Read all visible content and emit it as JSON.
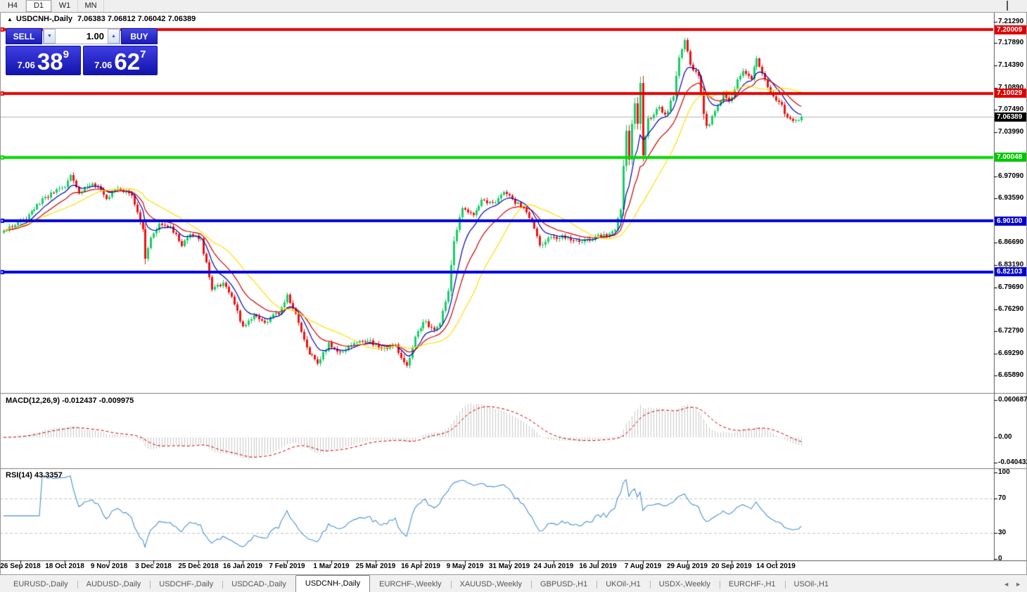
{
  "toolbar": {
    "timeframes": [
      "H4",
      "D1",
      "W1",
      "MN"
    ],
    "active": "D1"
  },
  "header": {
    "collapse_glyph": "▲",
    "symbol": "USDCNH-,Daily",
    "ohlc": "7.06383 7.06812 7.06042 7.06389"
  },
  "trade_widget": {
    "sell_label": "SELL",
    "buy_label": "BUY",
    "volume": "1.00",
    "spinner_down": "▼",
    "spinner_up": "▲",
    "sell_price": {
      "small": "7.06",
      "big": "38",
      "sup": "9"
    },
    "buy_price": {
      "small": "7.06",
      "big": "62",
      "sup": "7"
    }
  },
  "indicator_labels": {
    "macd": "MACD(12,26,9) -0.012437 -0.009975",
    "rsi": "RSI(14) 43.3357"
  },
  "tabbar": {
    "tabs": [
      "EURUSD-,Daily",
      "AUDUSD-,Daily",
      "USDCHF-,Daily",
      "USDCAD-,Daily",
      "USDCNH-,Daily",
      "EURCHF-,Weekly",
      "XAUUSD-,Weekly",
      "GBPUSD-,H1",
      "UKOil-,H1",
      "USDX-,Weekly",
      "EURCHF-,H1",
      "USOil-,H1"
    ],
    "active_index": 4,
    "scroll_left": "◄",
    "scroll_right": "►"
  },
  "chart_data": {
    "type": "candlestick",
    "title": "USDCNH-,Daily",
    "symbol": "USDCNH-",
    "timeframe": "Daily",
    "open": "7.06383",
    "high": "7.06812",
    "low": "7.06042",
    "close": "7.06389",
    "last_close": 7.06389,
    "candle_count": 288,
    "noise_seed": 11,
    "up_color": "#18ce66",
    "down_color": "#f01212",
    "price_anchors": [
      [
        0,
        6.885
      ],
      [
        8,
        6.905
      ],
      [
        14,
        6.935
      ],
      [
        22,
        6.955
      ],
      [
        24,
        6.972
      ],
      [
        27,
        6.945
      ],
      [
        32,
        6.962
      ],
      [
        37,
        6.938
      ],
      [
        41,
        6.953
      ],
      [
        46,
        6.943
      ],
      [
        50,
        6.885
      ],
      [
        51,
        6.84
      ],
      [
        53,
        6.872
      ],
      [
        56,
        6.898
      ],
      [
        60,
        6.893
      ],
      [
        64,
        6.862
      ],
      [
        67,
        6.883
      ],
      [
        71,
        6.872
      ],
      [
        75,
        6.795
      ],
      [
        79,
        6.802
      ],
      [
        83,
        6.772
      ],
      [
        86,
        6.733
      ],
      [
        90,
        6.753
      ],
      [
        94,
        6.741
      ],
      [
        99,
        6.758
      ],
      [
        102,
        6.783
      ],
      [
        105,
        6.755
      ],
      [
        109,
        6.701
      ],
      [
        113,
        6.678
      ],
      [
        117,
        6.708
      ],
      [
        121,
        6.695
      ],
      [
        126,
        6.71
      ],
      [
        131,
        6.714
      ],
      [
        136,
        6.7
      ],
      [
        141,
        6.706
      ],
      [
        145,
        6.672
      ],
      [
        148,
        6.718
      ],
      [
        151,
        6.744
      ],
      [
        155,
        6.731
      ],
      [
        157,
        6.741
      ],
      [
        160,
        6.79
      ],
      [
        162,
        6.868
      ],
      [
        165,
        6.923
      ],
      [
        169,
        6.91
      ],
      [
        172,
        6.934
      ],
      [
        176,
        6.928
      ],
      [
        180,
        6.948
      ],
      [
        183,
        6.934
      ],
      [
        186,
        6.924
      ],
      [
        190,
        6.9
      ],
      [
        193,
        6.862
      ],
      [
        196,
        6.874
      ],
      [
        202,
        6.875
      ],
      [
        207,
        6.869
      ],
      [
        212,
        6.874
      ],
      [
        217,
        6.879
      ],
      [
        220,
        6.889
      ],
      [
        222,
        6.918
      ],
      [
        223,
        6.99
      ],
      [
        224,
        7.04
      ],
      [
        225,
        6.998
      ],
      [
        226,
        7.05
      ],
      [
        227,
        7.088
      ],
      [
        228,
        7.05
      ],
      [
        229,
        7.115
      ],
      [
        230,
        7.005
      ],
      [
        232,
        7.06
      ],
      [
        233,
        7.064
      ],
      [
        236,
        7.079
      ],
      [
        238,
        7.064
      ],
      [
        241,
        7.098
      ],
      [
        243,
        7.158
      ],
      [
        245,
        7.183
      ],
      [
        247,
        7.145
      ],
      [
        250,
        7.128
      ],
      [
        252,
        7.065
      ],
      [
        253,
        7.046
      ],
      [
        256,
        7.07
      ],
      [
        259,
        7.1
      ],
      [
        261,
        7.085
      ],
      [
        264,
        7.12
      ],
      [
        266,
        7.138
      ],
      [
        269,
        7.125
      ],
      [
        271,
        7.152
      ],
      [
        274,
        7.12
      ],
      [
        276,
        7.1
      ],
      [
        279,
        7.089
      ],
      [
        281,
        7.071
      ],
      [
        284,
        7.054
      ],
      [
        287,
        7.06389
      ]
    ],
    "price_axis_ticks": [
      {
        "v": 7.2129,
        "label": "7.21290"
      },
      {
        "v": 7.1789,
        "label": "7.17890"
      },
      {
        "v": 7.1439,
        "label": "7.14390"
      },
      {
        "v": 7.1089,
        "label": "7.10890"
      },
      {
        "v": 7.0749,
        "label": "7.07490"
      },
      {
        "v": 7.0399,
        "label": "7.03990"
      },
      {
        "v": 6.9709,
        "label": "6.97090"
      },
      {
        "v": 6.9359,
        "label": "6.93590"
      },
      {
        "v": 6.8669,
        "label": "6.86690"
      },
      {
        "v": 6.8319,
        "label": "6.83190"
      },
      {
        "v": 6.7969,
        "label": "6.79690"
      },
      {
        "v": 6.7629,
        "label": "6.76290"
      },
      {
        "v": 6.7279,
        "label": "6.72790"
      },
      {
        "v": 6.6929,
        "label": "6.69290"
      },
      {
        "v": 6.6589,
        "label": "6.65890"
      }
    ],
    "price_badges": [
      {
        "v": 7.20009,
        "label": "7.20009",
        "bg": "#e00000"
      },
      {
        "v": 7.10029,
        "label": "7.10029",
        "bg": "#e00000"
      },
      {
        "v": 7.06389,
        "label": "7.06389",
        "bg": "#000000"
      },
      {
        "v": 7.00048,
        "label": "7.00048",
        "bg": "#00c800"
      },
      {
        "v": 6.901,
        "label": "6.90100",
        "bg": "#0000cc"
      },
      {
        "v": 6.82103,
        "label": "6.82103",
        "bg": "#0000cc"
      }
    ],
    "horizontal_lines": [
      {
        "price": 7.20009,
        "color": "#e60000",
        "width": 4
      },
      {
        "price": 7.10029,
        "color": "#e60000",
        "width": 4
      },
      {
        "price": 7.00048,
        "color": "#00dc00",
        "width": 4
      },
      {
        "price": 6.901,
        "color": "#0000e0",
        "width": 4
      },
      {
        "price": 6.82103,
        "color": "#0000e0",
        "width": 4
      }
    ],
    "current_price_line": {
      "price": 7.06389,
      "color": "#b4b4b4"
    },
    "moving_averages": [
      {
        "kind": "ema",
        "period": 8,
        "color": "#0000bb"
      },
      {
        "kind": "ema",
        "period": 16,
        "color": "#cc0000"
      },
      {
        "kind": "sma",
        "period": 26,
        "color": "#ffdf00"
      }
    ],
    "macd": {
      "fast": 12,
      "slow": 26,
      "signal_period": 9,
      "value": -0.012437,
      "signal_value": -0.009975,
      "axis_ticks": [
        {
          "v": 0.060687,
          "label": "0.060687"
        },
        {
          "v": 0,
          "label": "0.00"
        },
        {
          "v": -0.040432,
          "label": "-0.040432"
        }
      ],
      "hist_color": "#c8c8c8",
      "signal_color": "#cc0000"
    },
    "rsi": {
      "period": 14,
      "value": 43.3357,
      "axis_ticks": [
        {
          "v": 100,
          "label": "100"
        },
        {
          "v": 70,
          "label": "70"
        },
        {
          "v": 30,
          "label": "30"
        },
        {
          "v": 0,
          "label": "0"
        }
      ],
      "levels": [
        70,
        30
      ],
      "color": "#4a90d8",
      "level_color": "#c4c4c4"
    },
    "date_labels": [
      "26 Sep 2018",
      "18 Oct 2018",
      "9 Nov 2018",
      "3 Dec 2018",
      "25 Dec 2018",
      "16 Jan 2019",
      "7 Feb 2019",
      "1 Mar 2019",
      "25 Mar 2019",
      "16 Apr 2019",
      "9 May 2019",
      "31 May 2019",
      "24 Jun 2019",
      "16 Jul 2019",
      "7 Aug 2019",
      "29 Aug 2019",
      "20 Sep 2019",
      "14 Oct 2019"
    ],
    "date_first_candle_index": 6,
    "date_step": 16
  }
}
